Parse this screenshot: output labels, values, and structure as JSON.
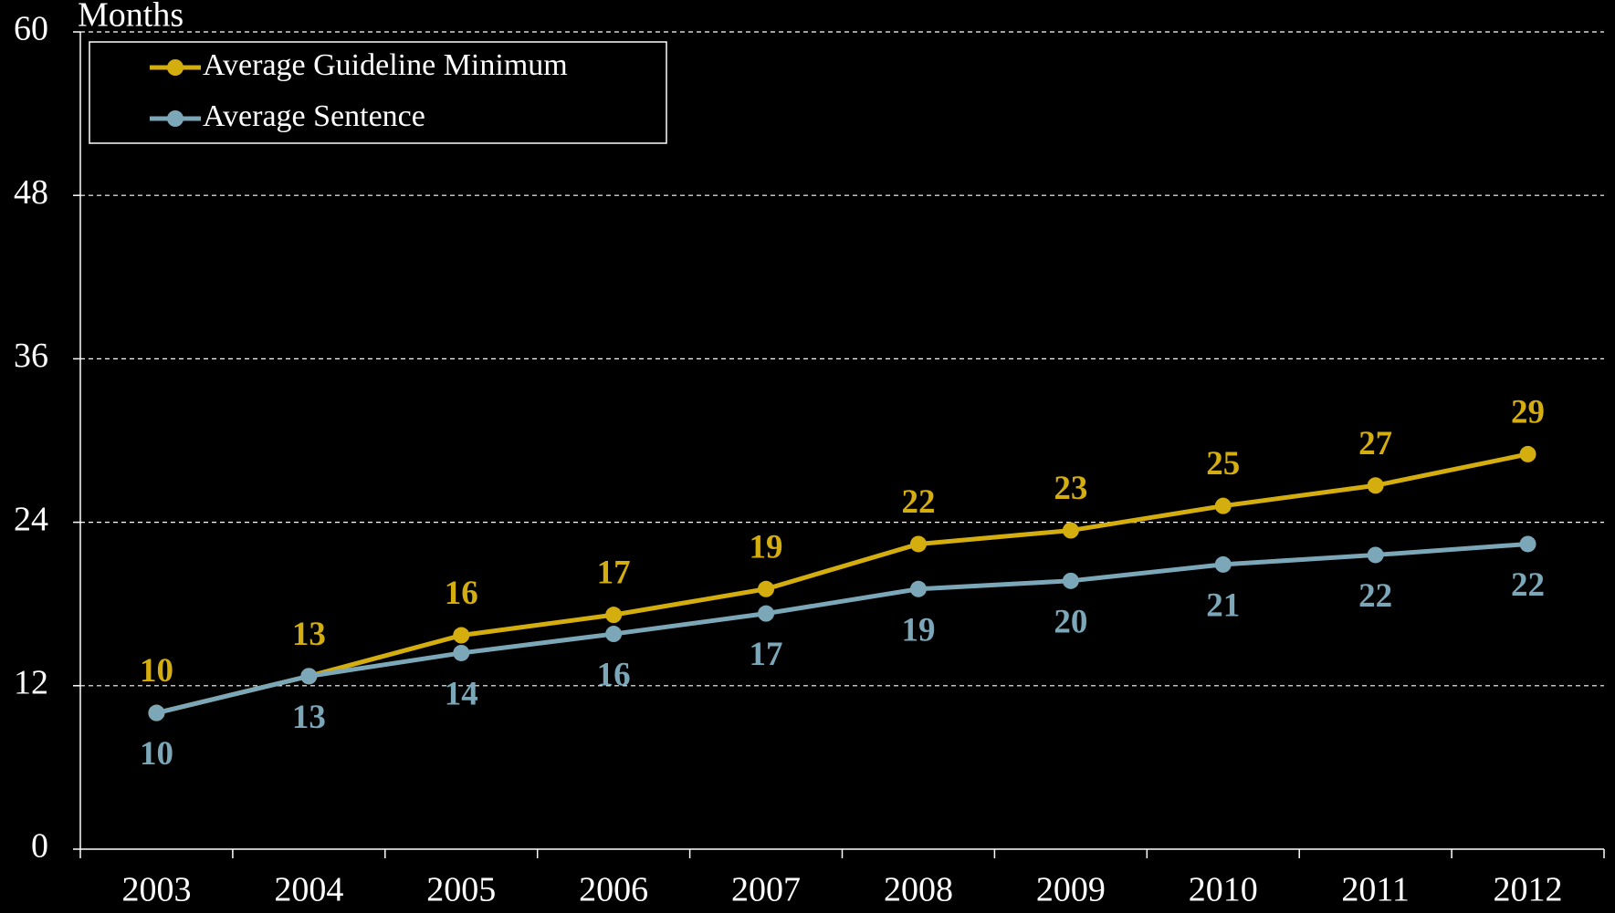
{
  "chart_data": {
    "type": "line",
    "y_label": "Months",
    "categories": [
      "2003",
      "2004",
      "2005",
      "2006",
      "2007",
      "2008",
      "2009",
      "2010",
      "2011",
      "2012"
    ],
    "series": [
      {
        "name": "Average Guideline Minimum",
        "color": "#d4ad0f",
        "values": [
          10,
          12.7,
          15.7,
          17.2,
          19.1,
          22.4,
          23.4,
          25.2,
          26.7,
          29.0
        ],
        "value_labels": [
          "10",
          "13",
          "16",
          "17",
          "19",
          "22",
          "23",
          "25",
          "27",
          "29"
        ]
      },
      {
        "name": "Average Sentence",
        "color": "#7ba7b8",
        "values": [
          10,
          12.7,
          14.4,
          15.8,
          17.3,
          19.1,
          19.7,
          20.9,
          21.6,
          22.4
        ],
        "value_labels": [
          "10",
          "13",
          "14",
          "16",
          "17",
          "19",
          "20",
          "21",
          "22",
          "22"
        ]
      }
    ],
    "ylim": [
      0,
      60
    ],
    "yticks": [
      0,
      12,
      24,
      36,
      48,
      60
    ],
    "grid": true,
    "legend": "top-left"
  }
}
